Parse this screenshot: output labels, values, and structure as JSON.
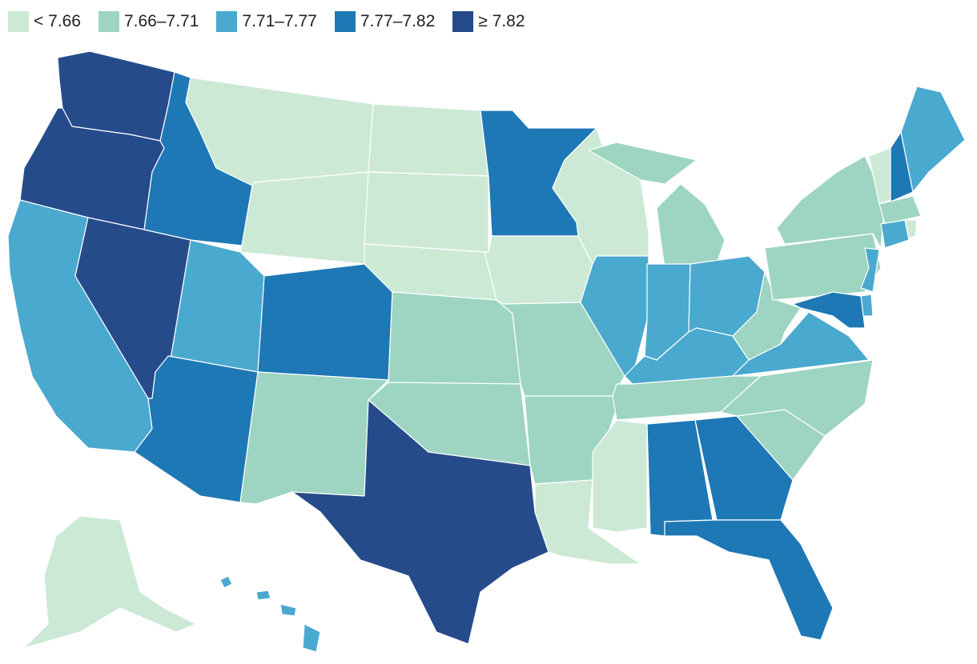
{
  "legend": [
    {
      "label": "< 7.66",
      "color": "#cce9d6"
    },
    {
      "label": "7.66–7.71",
      "color": "#9dd5c2"
    },
    {
      "label": "7.71–7.77",
      "color": "#4aa9cf"
    },
    {
      "label": "7.77–7.82",
      "color": "#1e78b5"
    },
    {
      "label": "≥ 7.82",
      "color": "#264b8b"
    }
  ],
  "states": [
    {
      "id": "WA",
      "class": 4
    },
    {
      "id": "OR",
      "class": 4
    },
    {
      "id": "CA",
      "class": 2
    },
    {
      "id": "NV",
      "class": 4
    },
    {
      "id": "ID",
      "class": 3
    },
    {
      "id": "MT",
      "class": 0
    },
    {
      "id": "WY",
      "class": 0
    },
    {
      "id": "UT",
      "class": 2
    },
    {
      "id": "AZ",
      "class": 3
    },
    {
      "id": "CO",
      "class": 3
    },
    {
      "id": "NM",
      "class": 1
    },
    {
      "id": "ND",
      "class": 0
    },
    {
      "id": "SD",
      "class": 0
    },
    {
      "id": "NE",
      "class": 0
    },
    {
      "id": "KS",
      "class": 1
    },
    {
      "id": "OK",
      "class": 1
    },
    {
      "id": "TX",
      "class": 4
    },
    {
      "id": "MN",
      "class": 3
    },
    {
      "id": "IA",
      "class": 0
    },
    {
      "id": "MO",
      "class": 1
    },
    {
      "id": "AR",
      "class": 1
    },
    {
      "id": "LA",
      "class": 0
    },
    {
      "id": "WI",
      "class": 0
    },
    {
      "id": "IL",
      "class": 2
    },
    {
      "id": "MI",
      "class": 1
    },
    {
      "id": "IN",
      "class": 2
    },
    {
      "id": "OH",
      "class": 2
    },
    {
      "id": "KY",
      "class": 2
    },
    {
      "id": "TN",
      "class": 1
    },
    {
      "id": "MS",
      "class": 0
    },
    {
      "id": "AL",
      "class": 3
    },
    {
      "id": "GA",
      "class": 3
    },
    {
      "id": "FL",
      "class": 3
    },
    {
      "id": "SC",
      "class": 1
    },
    {
      "id": "NC",
      "class": 1
    },
    {
      "id": "VA",
      "class": 2
    },
    {
      "id": "WV",
      "class": 1
    },
    {
      "id": "PA",
      "class": 1
    },
    {
      "id": "NY",
      "class": 1
    },
    {
      "id": "VT",
      "class": 0
    },
    {
      "id": "NH",
      "class": 3
    },
    {
      "id": "ME",
      "class": 2
    },
    {
      "id": "MA",
      "class": 1
    },
    {
      "id": "CT",
      "class": 2
    },
    {
      "id": "RI",
      "class": 0
    },
    {
      "id": "NJ",
      "class": 2
    },
    {
      "id": "DE",
      "class": 2
    },
    {
      "id": "MD",
      "class": 3
    },
    {
      "id": "AK",
      "class": 0
    },
    {
      "id": "HI",
      "class": 2
    }
  ]
}
